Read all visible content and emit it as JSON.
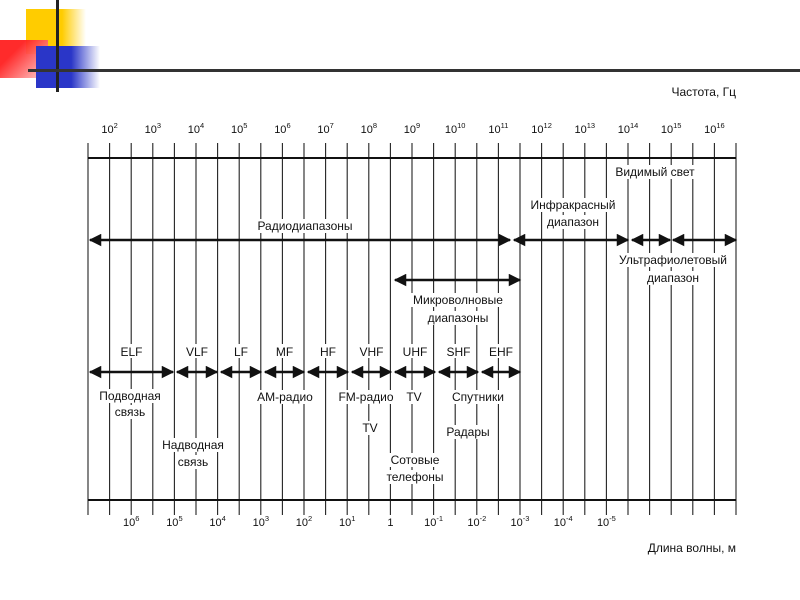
{
  "frequency_axis": {
    "title": "Частота, Гц",
    "ticks": [
      {
        "base": "10",
        "exp": "2"
      },
      {
        "base": "10",
        "exp": "3"
      },
      {
        "base": "10",
        "exp": "4"
      },
      {
        "base": "10",
        "exp": "5"
      },
      {
        "base": "10",
        "exp": "6"
      },
      {
        "base": "10",
        "exp": "7"
      },
      {
        "base": "10",
        "exp": "8"
      },
      {
        "base": "10",
        "exp": "9"
      },
      {
        "base": "10",
        "exp": "10"
      },
      {
        "base": "10",
        "exp": "11"
      },
      {
        "base": "10",
        "exp": "12"
      },
      {
        "base": "10",
        "exp": "13"
      },
      {
        "base": "10",
        "exp": "14"
      },
      {
        "base": "10",
        "exp": "15"
      },
      {
        "base": "10",
        "exp": "16"
      }
    ]
  },
  "wavelength_axis": {
    "title": "Длина волны, м",
    "ticks": [
      {
        "base": "10",
        "exp": "6"
      },
      {
        "base": "10",
        "exp": "5"
      },
      {
        "base": "10",
        "exp": "4"
      },
      {
        "base": "10",
        "exp": "3"
      },
      {
        "base": "10",
        "exp": "2"
      },
      {
        "base": "10",
        "exp": "1"
      },
      {
        "base": "1",
        "exp": ""
      },
      {
        "base": "10",
        "exp": "-1"
      },
      {
        "base": "10",
        "exp": "-2"
      },
      {
        "base": "10",
        "exp": "-3"
      },
      {
        "base": "10",
        "exp": "-4"
      },
      {
        "base": "10",
        "exp": "-5"
      }
    ]
  },
  "ranges": {
    "radio": "Радиодиапазоны",
    "infrared": [
      "Инфракрасный",
      "диапазон"
    ],
    "visible": "Видимый свет",
    "ultraviolet": [
      "Ультрафиолетовый",
      "диапазон"
    ],
    "microwave": [
      "Микроволновые",
      "диапазоны"
    ]
  },
  "bands": [
    "ELF",
    "VLF",
    "LF",
    "MF",
    "HF",
    "VHF",
    "UHF",
    "SHF",
    "EHF"
  ],
  "applications": {
    "underwater": [
      "Подводная",
      "связь"
    ],
    "surface": [
      "Надводная",
      "связь"
    ],
    "am_radio": "АМ-радио",
    "fm_radio": "FM-радио",
    "tv_uhf": "TV",
    "tv_vhf": "TV",
    "satellites": "Спутники",
    "radars": "Радары",
    "cell_phones": [
      "Сотовые",
      "телефоны"
    ]
  }
}
